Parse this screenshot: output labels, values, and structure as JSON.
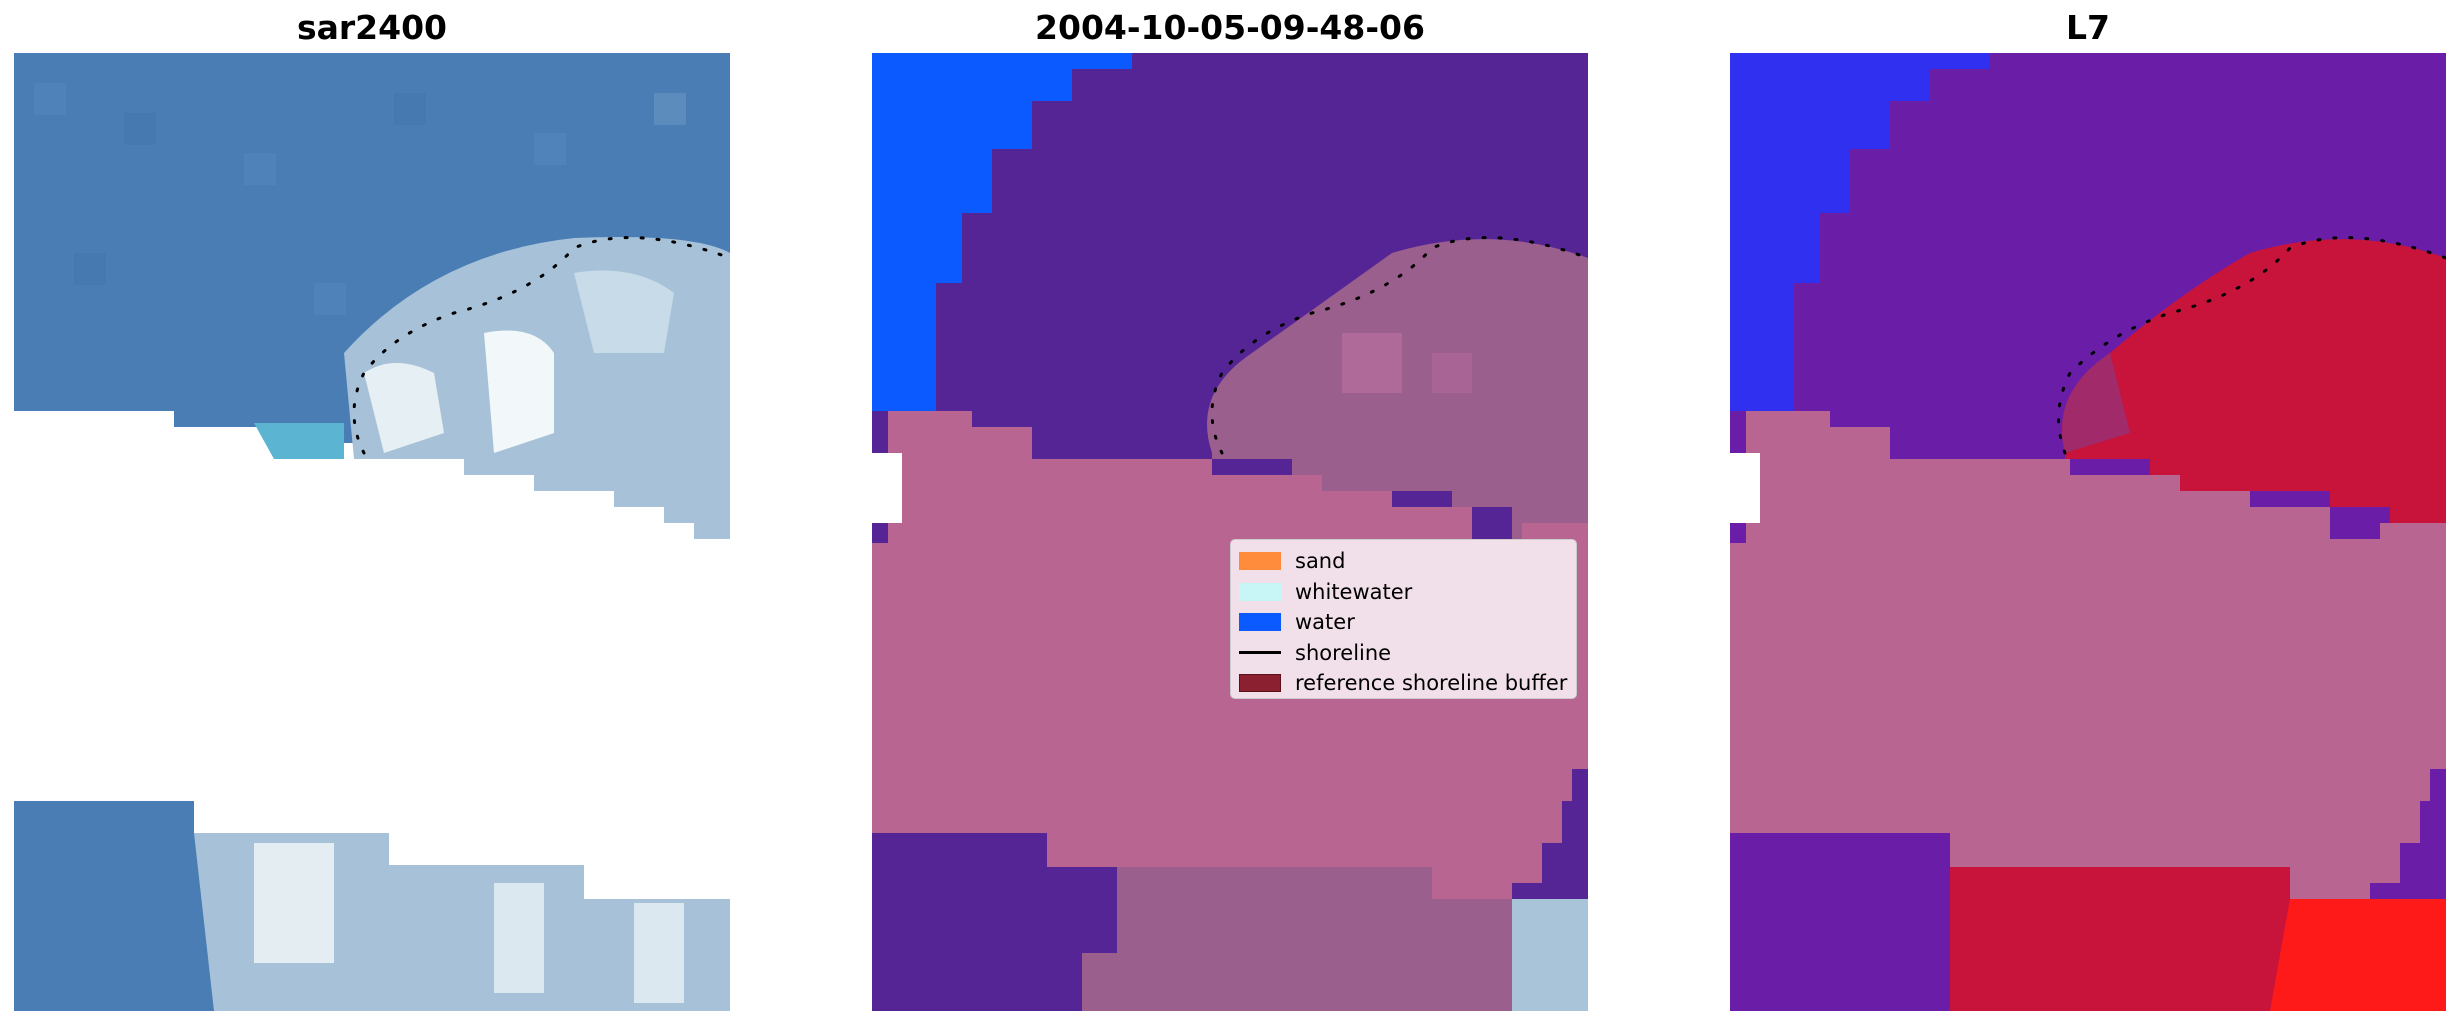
{
  "figure": {
    "panels": [
      {
        "title": "sar2400",
        "kind": "rgb"
      },
      {
        "title": "2004-10-05-09-48-06",
        "kind": "classified"
      },
      {
        "title": "L7",
        "kind": "index"
      }
    ]
  },
  "legend": {
    "items": [
      {
        "label": "sand",
        "color": "#ff8c3c",
        "type": "patch"
      },
      {
        "label": "whitewater",
        "color": "#c8f5f5",
        "type": "patch"
      },
      {
        "label": "water",
        "color": "#0a5aff",
        "type": "patch"
      },
      {
        "label": "shoreline",
        "color": "#000000",
        "type": "line"
      },
      {
        "label": "reference shoreline buffer",
        "color": "#8b2130",
        "type": "patch"
      }
    ]
  },
  "colors": {
    "ocean_rgb": "#4a7db4",
    "foam": "#d8e6ee",
    "shallow": "#5ab4d2",
    "water_class": "#0a5aff",
    "deep_class": "#552596",
    "buffer_pink": "#b96592",
    "index_blue": "#3030f0",
    "index_purple": "#6a1ea8",
    "index_red": "#c8143a",
    "index_bright_red": "#ff1a1a"
  }
}
